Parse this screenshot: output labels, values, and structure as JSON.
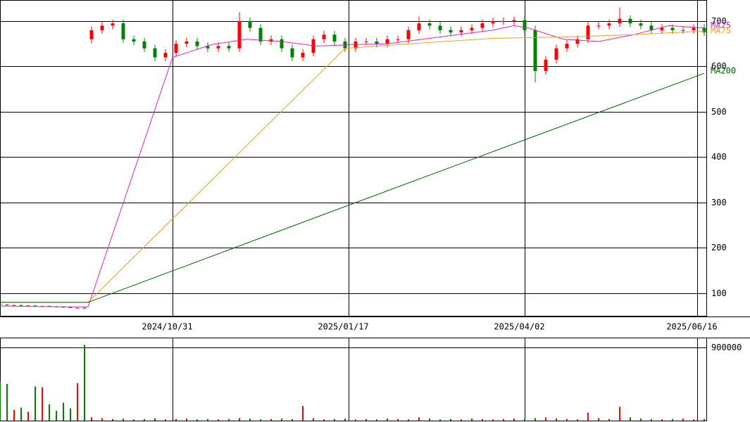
{
  "chart_data": {
    "type": "candlestick",
    "x": [
      0,
      2,
      4,
      6,
      8,
      10,
      12,
      14,
      16,
      18,
      20,
      22,
      24,
      26,
      29,
      32,
      35,
      38,
      41,
      44,
      47,
      50,
      53,
      56,
      59,
      62,
      65,
      68,
      71,
      74,
      77,
      80,
      83,
      86,
      89,
      92,
      95,
      98,
      101,
      104,
      107,
      110,
      113,
      116,
      119,
      122,
      125,
      128,
      131,
      134,
      137,
      140,
      143,
      146,
      149,
      152,
      155,
      158,
      161,
      164,
      167,
      170,
      173,
      176,
      179,
      182,
      185,
      188,
      191,
      194,
      197,
      200
    ],
    "open": [
      76,
      75,
      74,
      74,
      73,
      73,
      72,
      72,
      71,
      70,
      69,
      68,
      68,
      660,
      680,
      690,
      695,
      660,
      655,
      640,
      620,
      630,
      650,
      655,
      645,
      640,
      645,
      640,
      700,
      685,
      655,
      660,
      640,
      620,
      630,
      660,
      670,
      655,
      640,
      655,
      655,
      650,
      660,
      660,
      680,
      695,
      690,
      680,
      675,
      680,
      685,
      695,
      700,
      700,
      702,
      680,
      590,
      615,
      640,
      650,
      660,
      690,
      690,
      695,
      705,
      695,
      690,
      680,
      685,
      680,
      680,
      685
    ],
    "high": [
      77,
      76,
      75,
      75,
      74,
      74,
      73,
      73,
      72,
      71,
      70,
      69,
      69,
      688,
      698,
      703,
      703,
      668,
      663,
      648,
      638,
      658,
      663,
      663,
      653,
      653,
      653,
      720,
      708,
      693,
      668,
      668,
      648,
      638,
      668,
      678,
      678,
      663,
      663,
      663,
      663,
      668,
      668,
      688,
      710,
      703,
      698,
      688,
      688,
      693,
      703,
      708,
      708,
      710,
      710,
      690,
      623,
      648,
      658,
      668,
      698,
      698,
      703,
      730,
      713,
      703,
      698,
      693,
      693,
      688,
      693,
      693
    ],
    "low": [
      74,
      73,
      73,
      72,
      72,
      71,
      71,
      70,
      69,
      68,
      67,
      67,
      66,
      652,
      672,
      682,
      652,
      647,
      632,
      612,
      612,
      622,
      642,
      637,
      632,
      632,
      632,
      632,
      677,
      647,
      647,
      632,
      612,
      612,
      622,
      652,
      647,
      632,
      632,
      647,
      642,
      642,
      652,
      652,
      672,
      682,
      672,
      667,
      667,
      672,
      677,
      687,
      692,
      692,
      672,
      565,
      582,
      607,
      632,
      642,
      652,
      682,
      682,
      687,
      687,
      682,
      672,
      672,
      672,
      672,
      672,
      667
    ],
    "close": [
      75,
      74,
      74,
      73,
      73,
      72,
      72,
      71,
      70,
      69,
      68,
      68,
      67,
      680,
      690,
      695,
      660,
      655,
      640,
      620,
      630,
      650,
      655,
      645,
      640,
      645,
      640,
      700,
      685,
      655,
      660,
      640,
      620,
      630,
      660,
      670,
      655,
      640,
      655,
      655,
      650,
      660,
      660,
      680,
      695,
      690,
      680,
      675,
      680,
      685,
      695,
      700,
      700,
      702,
      680,
      590,
      615,
      640,
      650,
      660,
      690,
      690,
      695,
      705,
      695,
      690,
      680,
      685,
      680,
      680,
      685,
      675
    ],
    "up_color": "#ff0000",
    "down_color": "#008000",
    "xlim": [
      0,
      200.6
    ],
    "xticks": [
      {
        "value": 49,
        "label": "2024/10/31"
      },
      {
        "value": 99,
        "label": "2025/01/17"
      },
      {
        "value": 149,
        "label": "2025/04/02"
      },
      {
        "value": 198,
        "label": "2025/06/16"
      }
    ],
    "ylim": [
      48.8,
      746.5
    ],
    "yticks": [
      100,
      200,
      300,
      400,
      500,
      600,
      700
    ],
    "grid": true,
    "moving_averages": [
      {
        "name": "MA25",
        "color": "#e020c0",
        "x": [
          0,
          10,
          20,
          25,
          49,
          60,
          70,
          80,
          90,
          100,
          110,
          120,
          130,
          140,
          146,
          150,
          160,
          170,
          180,
          190,
          200
        ],
        "values": [
          72,
          71,
          70,
          70,
          620,
          648,
          660,
          655,
          645,
          648,
          650,
          660,
          670,
          680,
          690,
          685,
          660,
          655,
          670,
          690,
          685
        ]
      },
      {
        "name": "MA75",
        "color": "#f0a020",
        "x": [
          0,
          25,
          98,
          120,
          140,
          160,
          180,
          200
        ],
        "values": [
          80,
          80,
          640,
          652,
          662,
          665,
          670,
          678
        ]
      },
      {
        "name": "MA200",
        "color": "#006400",
        "x": [
          0,
          25,
          100,
          150,
          200
        ],
        "values": [
          80,
          80,
          297,
          441,
          585
        ]
      }
    ],
    "volume": {
      "values": [
        480000,
        450000,
        130000,
        160000,
        110000,
        420000,
        410000,
        200000,
        120000,
        220000,
        150000,
        460000,
        930000,
        40000,
        30000,
        20000,
        25000,
        15000,
        20000,
        30000,
        15000,
        20000,
        25000,
        15000,
        20000,
        15000,
        20000,
        30000,
        25000,
        15000,
        20000,
        25000,
        20000,
        180000,
        30000,
        15000,
        20000,
        25000,
        15000,
        20000,
        15000,
        25000,
        20000,
        15000,
        40000,
        25000,
        15000,
        20000,
        15000,
        25000,
        20000,
        15000,
        20000,
        25000,
        20000,
        30000,
        40000,
        25000,
        20000,
        15000,
        100000,
        30000,
        20000,
        170000,
        40000,
        25000,
        20000,
        15000,
        20000,
        25000,
        15000,
        20000
      ],
      "ylim": [
        0,
        1020000
      ],
      "yticks": [
        900000
      ]
    }
  }
}
